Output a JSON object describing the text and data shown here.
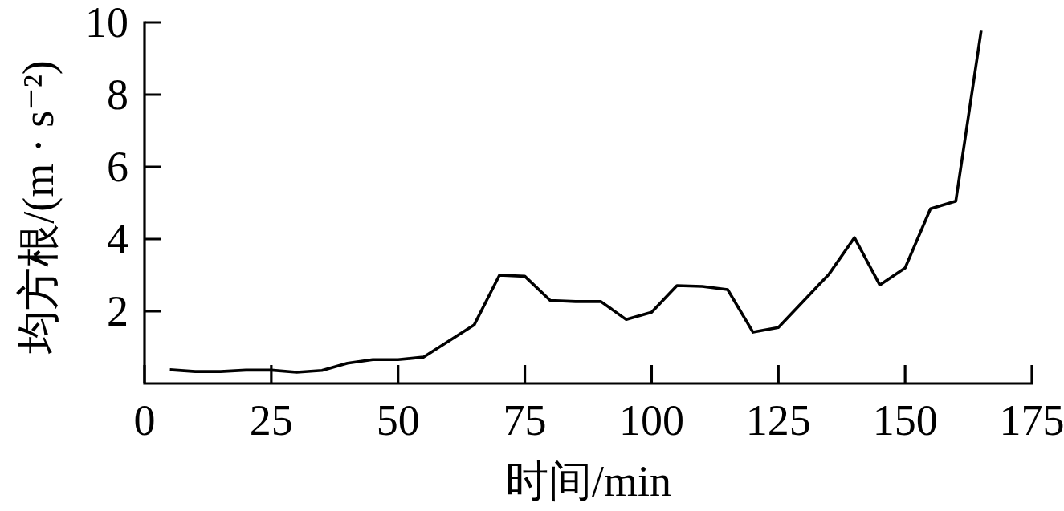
{
  "chart_data": {
    "type": "line",
    "xlabel": "时间/min",
    "ylabel": "均方根/(m · s⁻²)",
    "x": [
      5,
      10,
      15,
      20,
      25,
      30,
      35,
      40,
      45,
      50,
      55,
      65,
      70,
      75,
      80,
      85,
      90,
      95,
      100,
      105,
      110,
      115,
      120,
      125,
      135,
      140,
      145,
      150,
      155,
      160,
      165
    ],
    "series": [
      {
        "color": "#000000",
        "values": [
          0.38,
          0.33,
          0.33,
          0.37,
          0.37,
          0.31,
          0.36,
          0.56,
          0.66,
          0.66,
          0.73,
          1.62,
          3.0,
          2.97,
          2.3,
          2.27,
          2.27,
          1.77,
          1.97,
          2.71,
          2.69,
          2.6,
          1.42,
          1.55,
          3.03,
          4.04,
          2.73,
          3.2,
          4.84,
          5.05,
          9.77
        ]
      }
    ],
    "xlim": [
      0,
      175
    ],
    "ylim": [
      0,
      10
    ],
    "xticks": [
      0,
      25,
      50,
      75,
      100,
      125,
      150,
      175
    ],
    "yticks": [
      2,
      4,
      6,
      8,
      10
    ],
    "line_style": "solid"
  }
}
